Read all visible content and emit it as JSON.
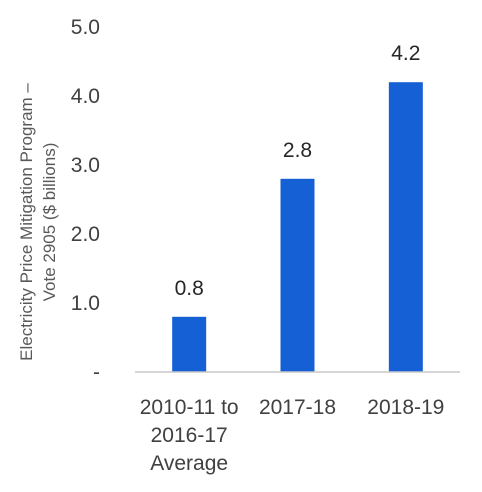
{
  "chart_data": {
    "type": "bar",
    "title": "",
    "xlabel": "",
    "ylabel": "Electricity Price Mitigation Program – Vote 2905 ($ billions)",
    "ylabel_lines": [
      "Electricity Price Mitigation Program –",
      "Vote 2905 ($ billions)"
    ],
    "categories": [
      [
        "2010-11 to",
        "2016-17",
        "Average"
      ],
      [
        "2017-18"
      ],
      [
        "2018-19"
      ]
    ],
    "values": [
      0.8,
      2.8,
      4.2
    ],
    "data_labels": [
      "0.8",
      "2.8",
      "4.2"
    ],
    "ylim": [
      0,
      5
    ],
    "y_ticks": [
      {
        "value": 0,
        "label": "-"
      },
      {
        "value": 1,
        "label": "1.0"
      },
      {
        "value": 2,
        "label": "2.0"
      },
      {
        "value": 3,
        "label": "3.0"
      },
      {
        "value": 4,
        "label": "4.0"
      },
      {
        "value": 5,
        "label": "5.0"
      }
    ],
    "grid": false,
    "legend": "none",
    "bar_color": "#1560D4",
    "axis_color": "#C8C8C8"
  }
}
